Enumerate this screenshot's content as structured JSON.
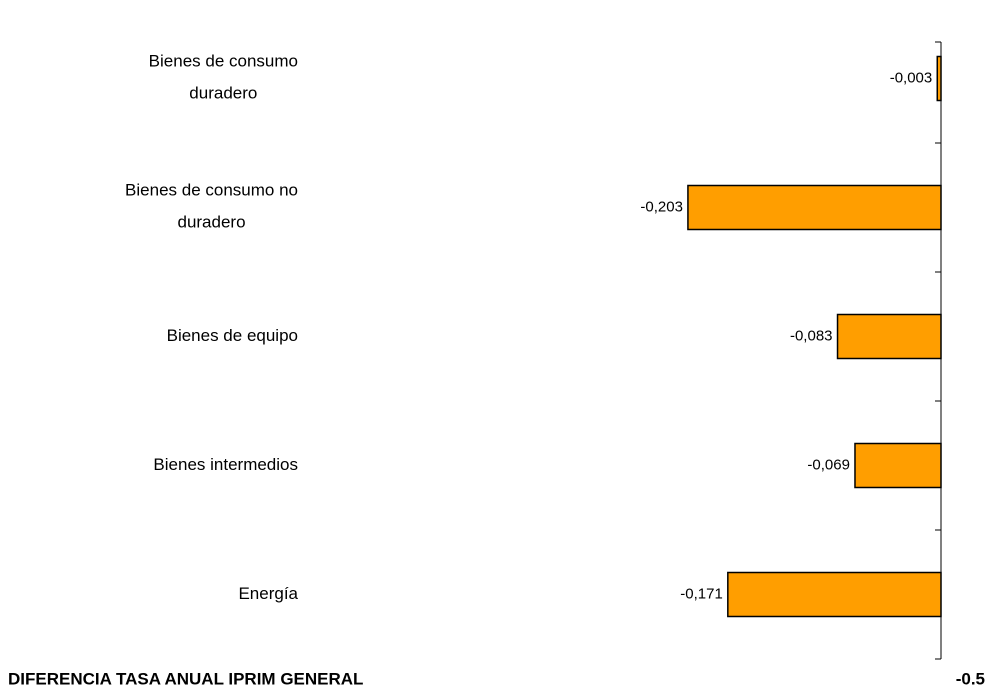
{
  "chart_data": {
    "type": "barh",
    "categories": [
      "Bienes de consumo duradero",
      "Bienes de consumo no duradero",
      "Bienes de equipo",
      "Bienes intermedios",
      "Energía"
    ],
    "values": [
      -0.003,
      -0.203,
      -0.083,
      -0.069,
      -0.171
    ],
    "value_labels": [
      "-0,003",
      "-0,203",
      "-0,083",
      "-0,069",
      "-0,171"
    ],
    "color": "#ff9e00",
    "xlim": [
      -0.75,
      0
    ]
  },
  "footer": {
    "label": "DIFERENCIA TASA ANUAL IPRIM GENERAL",
    "value": -0.5
  }
}
